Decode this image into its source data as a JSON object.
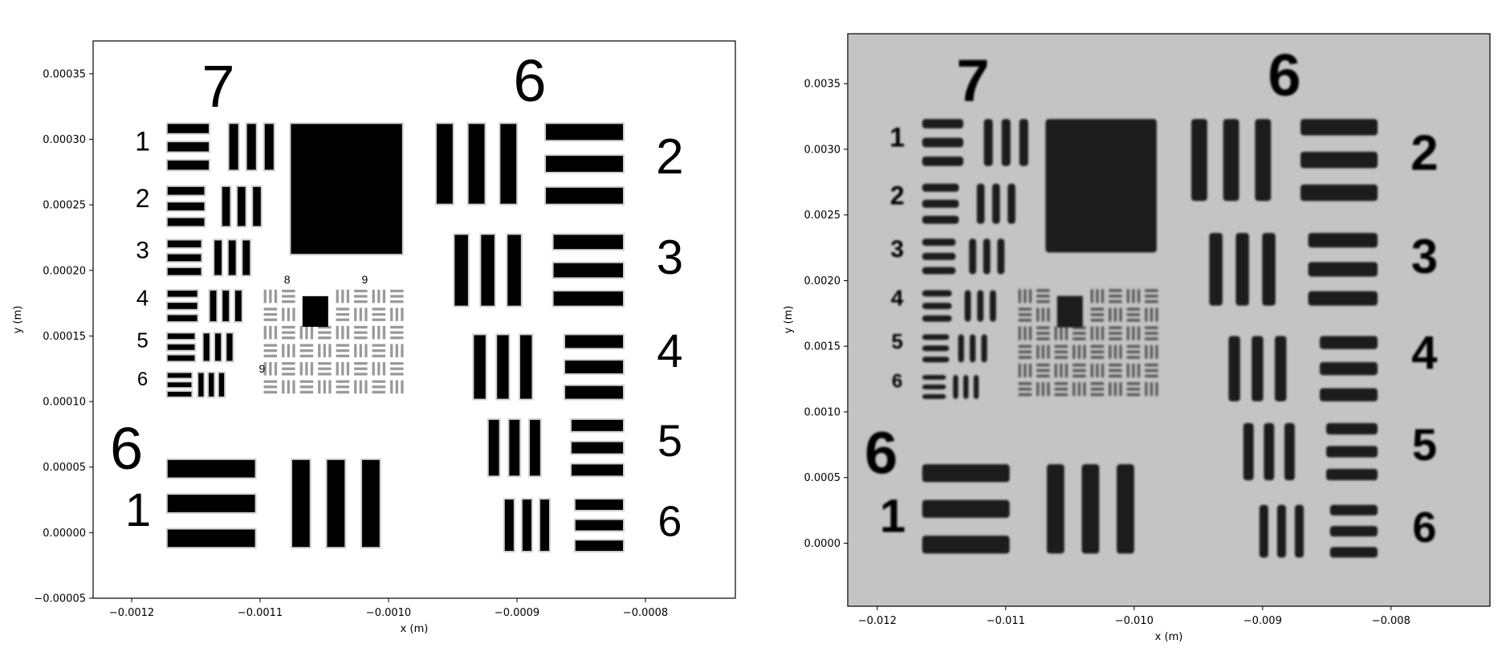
{
  "chart_data": [
    {
      "type": "heatmap",
      "xlabel": "x (m)",
      "ylabel": "y (m)",
      "xlim": [
        -0.00123,
        -0.00073
      ],
      "ylim": [
        -5e-05,
        0.000375
      ],
      "xticks": [
        -0.0012,
        -0.0011,
        -0.001,
        -0.0009,
        -0.0008
      ],
      "xtick_labels": [
        "−0.0012",
        "−0.0011",
        "−0.0010",
        "−0.0009",
        "−0.0008"
      ],
      "yticks": [
        -5e-05,
        0.0,
        5e-05,
        0.0001,
        0.00015,
        0.0002,
        0.00025,
        0.0003,
        0.00035
      ],
      "ytick_labels": [
        "−0.00005",
        "0.00000",
        "0.00005",
        "0.00010",
        "0.00015",
        "0.00020",
        "0.00025",
        "0.00030",
        "0.00035"
      ],
      "colormap": "gray",
      "background": "#ffffff",
      "bar_color": "#000000",
      "group_labels": [
        "7",
        "6",
        "6"
      ],
      "element_labels_left": [
        "1",
        "2",
        "3",
        "4",
        "5",
        "6"
      ],
      "element_labels_right": [
        "2",
        "3",
        "4",
        "5",
        "6"
      ],
      "element_label_g6": "1",
      "inner_labels": [
        "8",
        "9",
        "9"
      ]
    },
    {
      "type": "heatmap",
      "xlabel": "x (m)",
      "ylabel": "y (m)",
      "xlim": [
        -0.01223,
        -0.00723
      ],
      "ylim": [
        -0.00048,
        0.00388
      ],
      "xticks": [
        -0.012,
        -0.011,
        -0.01,
        -0.009,
        -0.008
      ],
      "xtick_labels": [
        "−0.012",
        "−0.011",
        "−0.010",
        "−0.009",
        "−0.008"
      ],
      "yticks": [
        0.0,
        0.0005,
        0.001,
        0.0015,
        0.002,
        0.0025,
        0.003,
        0.0035
      ],
      "ytick_labels": [
        "0.0000",
        "0.0005",
        "0.0010",
        "0.0015",
        "0.0020",
        "0.0025",
        "0.0030",
        "0.0035"
      ],
      "colormap": "gray",
      "background": "#c4c4c4",
      "bar_color": "#1a1a1a",
      "group_labels": [
        "7",
        "6",
        "6"
      ],
      "element_labels_left": [
        "1",
        "2",
        "3",
        "4",
        "5",
        "6"
      ],
      "element_labels_right": [
        "2",
        "3",
        "4",
        "5",
        "6"
      ],
      "element_label_g6": "1"
    }
  ]
}
